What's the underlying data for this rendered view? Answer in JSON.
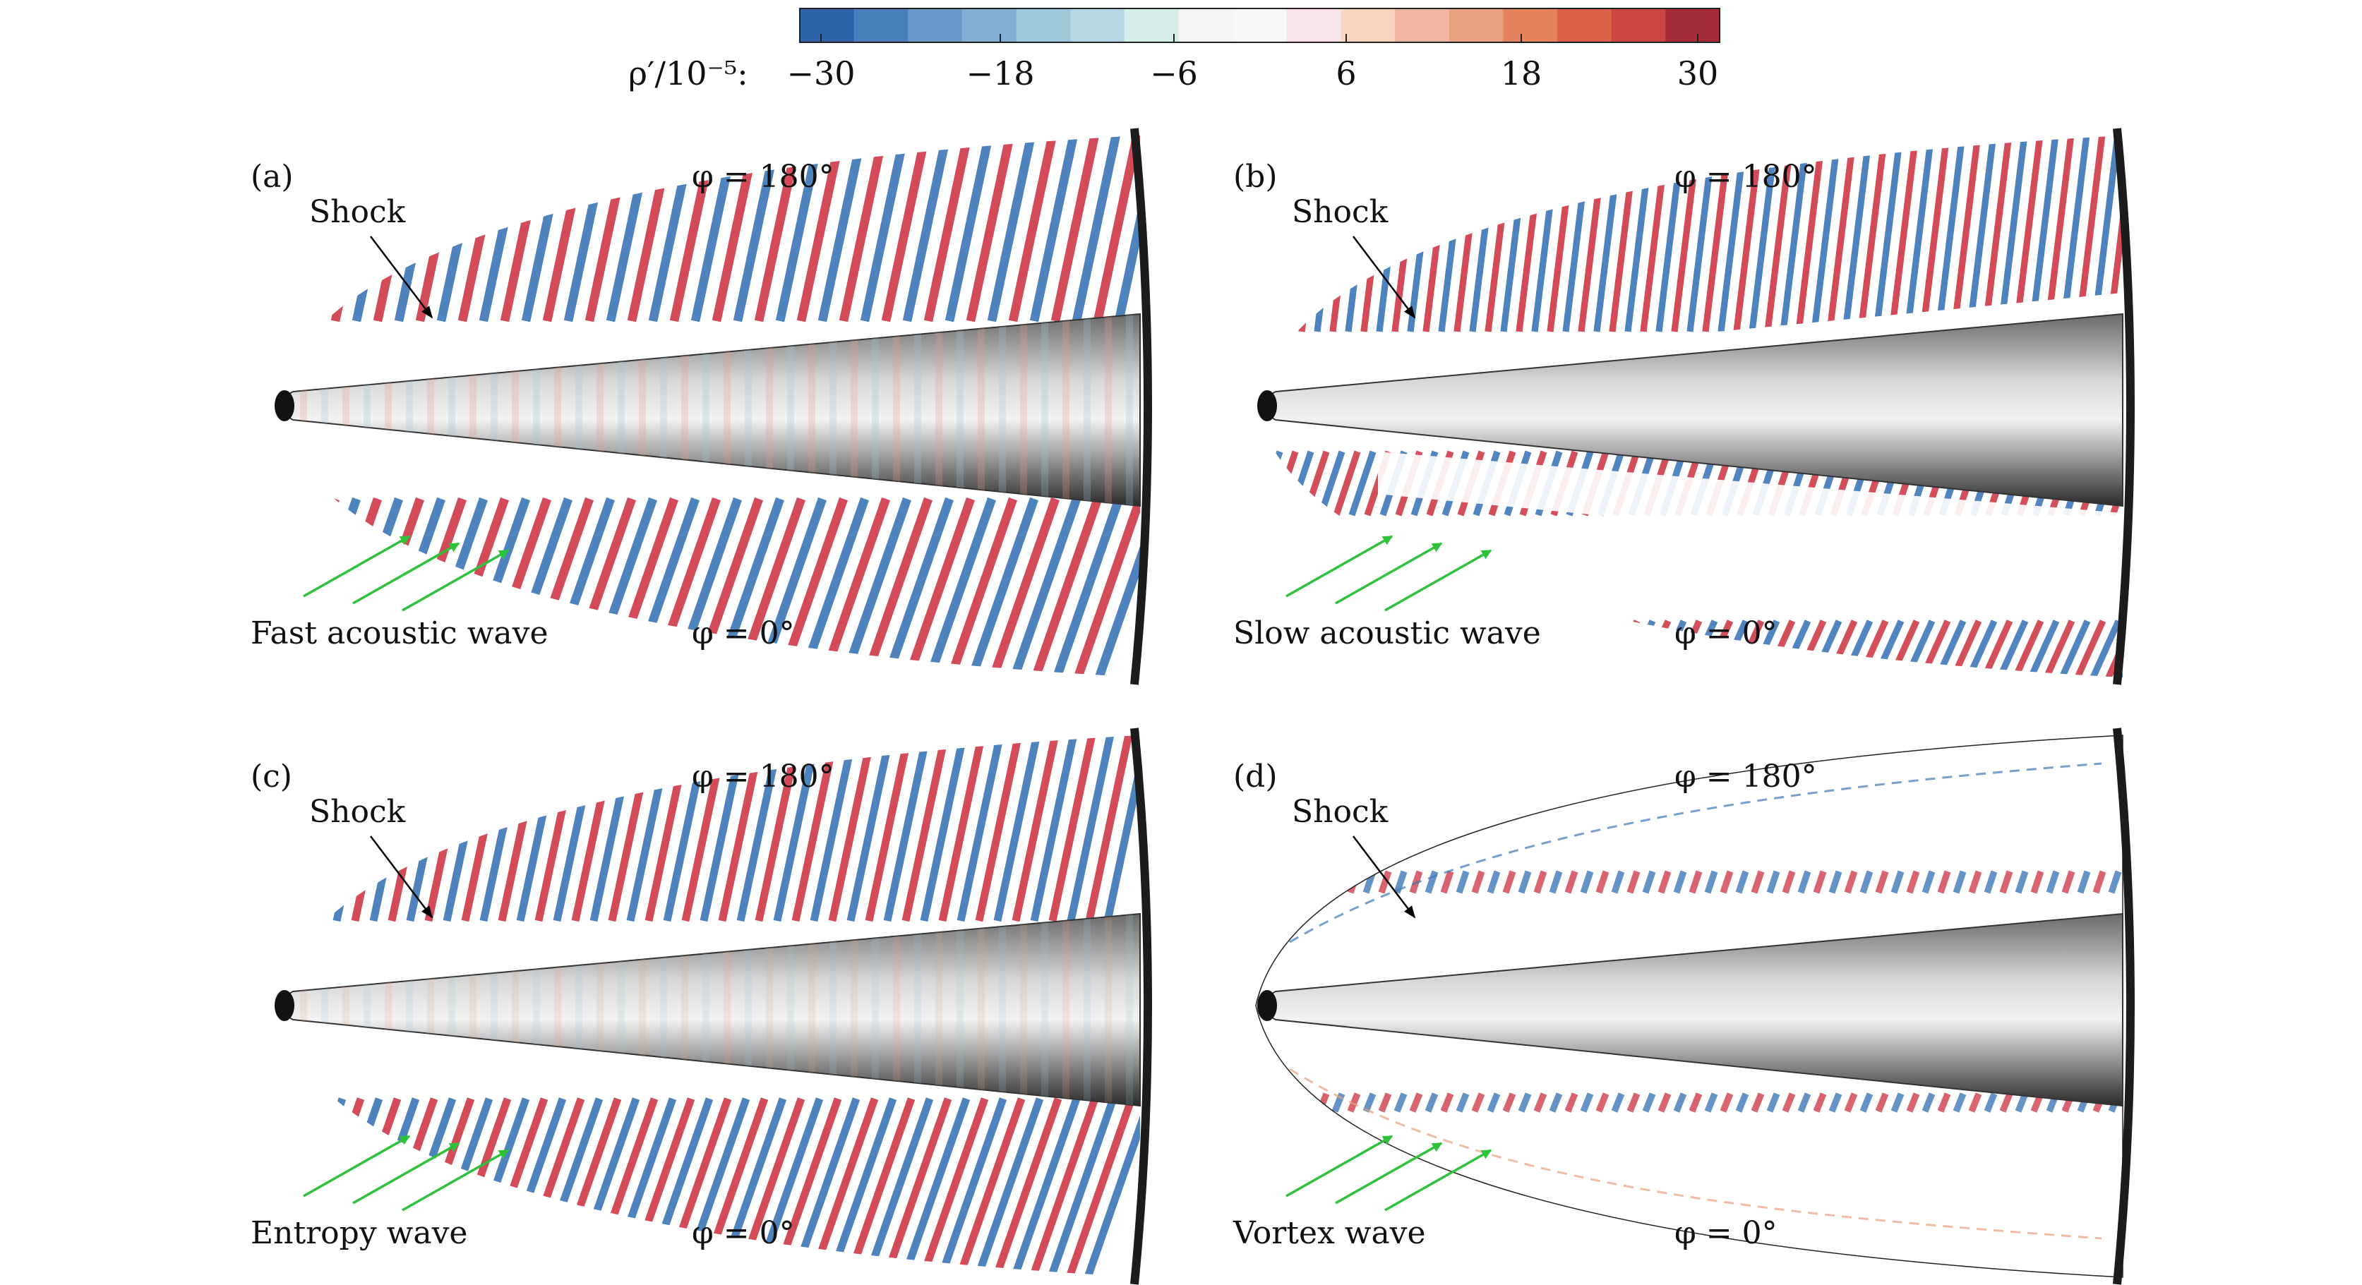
{
  "colorbar": {
    "label": "ρ′/10⁻⁵:",
    "ticks": [
      "−30",
      "−18",
      "−6",
      "6",
      "18",
      "30"
    ],
    "colors": [
      "#2f63a8",
      "#4a7fbd",
      "#6699c8",
      "#80aed3",
      "#9bc7d8",
      "#b9d6e6",
      "#d6ece9",
      "#f4f4f4",
      "#f7f7f7",
      "#f9e3ea",
      "#f9d4c1",
      "#f0b6a3",
      "#e9a07e",
      "#e5835f",
      "#da6047",
      "#cc4540",
      "#a42b37"
    ]
  },
  "panels": [
    {
      "letter": "(a)",
      "shock_label": "Shock",
      "top_angle": "φ = 180°",
      "bottom_angle": "φ = 0°",
      "wave_label": "Fast acoustic wave",
      "pattern": "fast"
    },
    {
      "letter": "(b)",
      "shock_label": "Shock",
      "top_angle": "φ = 180°",
      "bottom_angle": "φ = 0°",
      "wave_label": "Slow acoustic wave",
      "pattern": "slow"
    },
    {
      "letter": "(c)",
      "shock_label": "Shock",
      "top_angle": "φ = 180°",
      "bottom_angle": "φ = 0°",
      "wave_label": "Entropy wave",
      "pattern": "entropy"
    },
    {
      "letter": "(d)",
      "shock_label": "Shock",
      "top_angle": "φ = 180°",
      "bottom_angle": "φ = 0°",
      "wave_label": "Vortex wave",
      "pattern": "vortex"
    }
  ],
  "style": {
    "arrow_color": "#2ec23a",
    "wave_red": "#cf3c4a",
    "wave_blue": "#3f78b8"
  }
}
